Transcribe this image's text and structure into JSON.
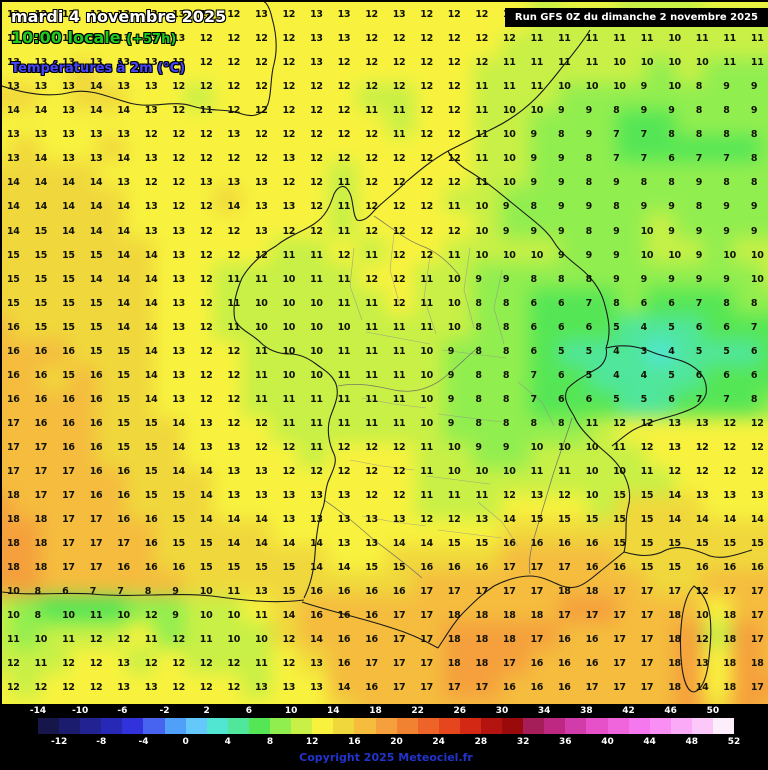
{
  "header": {
    "date": "mardi 4 novembre 2025",
    "time": "10:00 locale",
    "offset": "(+57h)",
    "parameter": "Températures à 2m (°C)",
    "run_info": "Run GFS 0Z du dimanche 2 novembre 2025"
  },
  "colors": {
    "date": "#ffffff",
    "time": "#1ecb1e",
    "parameter": "#4646ff",
    "copyright": "#2233cc",
    "number_text": "#121200"
  },
  "legend": {
    "copyright": "Copyright 2025 Meteociel.fr",
    "min": -14,
    "max": 52,
    "step": 2,
    "top_labels": [
      -14,
      -10,
      -6,
      -2,
      2,
      6,
      10,
      14,
      18,
      22,
      26,
      30,
      34,
      38,
      42,
      46,
      50
    ],
    "bottom_labels": [
      -12,
      -8,
      -4,
      0,
      4,
      8,
      12,
      16,
      20,
      24,
      28,
      32,
      36,
      40,
      44,
      48,
      52
    ],
    "colors": [
      "#16164a",
      "#1c1c6e",
      "#222292",
      "#2828b6",
      "#3232dc",
      "#4664f0",
      "#50a0fa",
      "#64c8fa",
      "#50e6d2",
      "#50e69b",
      "#55e655",
      "#91ee4f",
      "#c8f046",
      "#f8f23e",
      "#f0d83c",
      "#f5bc3e",
      "#f5a03c",
      "#f08232",
      "#ee6428",
      "#e6461e",
      "#d22814",
      "#b41410",
      "#9b0a0a",
      "#a51e5a",
      "#be2882",
      "#d23caa",
      "#e650c8",
      "#f064dc",
      "#f678ee",
      "#f98ff4",
      "#fbaaf8",
      "#fcc8fa",
      "#fdeefc"
    ]
  },
  "chart_data": {
    "type": "heatmap",
    "title": "Températures à 2m (°C)",
    "unit": "°C",
    "grid": [
      [
        13,
        12,
        13,
        13,
        13,
        13,
        13,
        12,
        12,
        13,
        12,
        13,
        13,
        12,
        13,
        12,
        12,
        12,
        12,
        11,
        12,
        12,
        11,
        11,
        11,
        12,
        12,
        12
      ],
      [
        13,
        13,
        13,
        13,
        13,
        13,
        13,
        12,
        12,
        12,
        12,
        13,
        13,
        12,
        12,
        12,
        12,
        12,
        12,
        11,
        11,
        11,
        11,
        11,
        10,
        11,
        11,
        11
      ],
      [
        13,
        13,
        13,
        13,
        13,
        13,
        12,
        12,
        12,
        12,
        12,
        13,
        12,
        12,
        12,
        12,
        12,
        12,
        11,
        11,
        11,
        11,
        10,
        10,
        10,
        10,
        11,
        11
      ],
      [
        13,
        13,
        13,
        14,
        13,
        13,
        12,
        12,
        12,
        12,
        12,
        12,
        12,
        12,
        12,
        12,
        12,
        11,
        11,
        11,
        10,
        10,
        10,
        9,
        10,
        8,
        9,
        9
      ],
      [
        14,
        14,
        13,
        14,
        14,
        13,
        12,
        11,
        12,
        12,
        12,
        12,
        12,
        11,
        11,
        12,
        12,
        11,
        10,
        10,
        9,
        9,
        8,
        9,
        9,
        8,
        8,
        9
      ],
      [
        13,
        13,
        13,
        13,
        13,
        12,
        12,
        12,
        13,
        12,
        12,
        12,
        12,
        12,
        11,
        12,
        12,
        11,
        10,
        9,
        8,
        9,
        7,
        7,
        8,
        8,
        8,
        8
      ],
      [
        13,
        14,
        13,
        13,
        14,
        13,
        12,
        12,
        12,
        12,
        13,
        12,
        12,
        12,
        12,
        12,
        12,
        11,
        10,
        9,
        9,
        8,
        7,
        7,
        6,
        7,
        7,
        8
      ],
      [
        14,
        14,
        14,
        14,
        13,
        12,
        12,
        13,
        13,
        13,
        12,
        12,
        11,
        12,
        12,
        12,
        12,
        11,
        10,
        9,
        9,
        8,
        9,
        8,
        8,
        9,
        8,
        8
      ],
      [
        14,
        14,
        14,
        14,
        14,
        13,
        12,
        12,
        14,
        13,
        13,
        12,
        11,
        12,
        12,
        12,
        11,
        10,
        9,
        8,
        9,
        9,
        8,
        9,
        9,
        8,
        9,
        9
      ],
      [
        14,
        15,
        14,
        14,
        14,
        13,
        13,
        12,
        12,
        13,
        12,
        12,
        11,
        12,
        12,
        12,
        12,
        10,
        9,
        9,
        9,
        8,
        9,
        10,
        9,
        9,
        9,
        9
      ],
      [
        15,
        15,
        15,
        15,
        14,
        14,
        13,
        12,
        12,
        12,
        11,
        11,
        12,
        11,
        12,
        12,
        11,
        10,
        10,
        10,
        9,
        9,
        9,
        10,
        10,
        9,
        10,
        10
      ],
      [
        15,
        15,
        15,
        14,
        14,
        14,
        13,
        12,
        11,
        11,
        10,
        11,
        11,
        12,
        12,
        11,
        10,
        9,
        9,
        8,
        8,
        8,
        9,
        9,
        9,
        9,
        9,
        10
      ],
      [
        15,
        15,
        15,
        15,
        14,
        14,
        13,
        12,
        11,
        10,
        10,
        10,
        11,
        11,
        12,
        11,
        10,
        8,
        8,
        6,
        6,
        7,
        8,
        6,
        6,
        7,
        8,
        8
      ],
      [
        16,
        15,
        15,
        15,
        14,
        14,
        13,
        12,
        11,
        10,
        10,
        10,
        10,
        11,
        11,
        11,
        10,
        8,
        8,
        6,
        6,
        6,
        5,
        4,
        5,
        6,
        6,
        7
      ],
      [
        16,
        16,
        16,
        15,
        15,
        14,
        13,
        12,
        12,
        11,
        10,
        10,
        11,
        11,
        11,
        10,
        9,
        8,
        8,
        6,
        5,
        5,
        4,
        3,
        4,
        5,
        5,
        6
      ],
      [
        16,
        16,
        15,
        16,
        15,
        14,
        13,
        12,
        12,
        11,
        10,
        10,
        11,
        11,
        11,
        10,
        9,
        8,
        8,
        7,
        6,
        5,
        4,
        4,
        5,
        6,
        6,
        6
      ],
      [
        16,
        16,
        16,
        16,
        15,
        14,
        13,
        12,
        12,
        11,
        11,
        11,
        11,
        11,
        11,
        10,
        9,
        8,
        8,
        7,
        6,
        6,
        5,
        5,
        6,
        7,
        7,
        8
      ],
      [
        17,
        16,
        16,
        16,
        15,
        15,
        14,
        13,
        12,
        12,
        11,
        11,
        11,
        11,
        11,
        10,
        9,
        8,
        8,
        8,
        8,
        11,
        12,
        12,
        13,
        13,
        12,
        12
      ],
      [
        17,
        17,
        16,
        16,
        15,
        15,
        14,
        13,
        13,
        12,
        12,
        11,
        12,
        12,
        12,
        11,
        10,
        9,
        9,
        10,
        10,
        10,
        11,
        12,
        13,
        12,
        12,
        12
      ],
      [
        17,
        17,
        17,
        16,
        16,
        15,
        14,
        14,
        13,
        13,
        12,
        12,
        12,
        12,
        12,
        11,
        10,
        10,
        10,
        11,
        11,
        10,
        10,
        11,
        12,
        12,
        12,
        12
      ],
      [
        18,
        17,
        17,
        16,
        16,
        15,
        15,
        14,
        13,
        13,
        13,
        13,
        13,
        12,
        12,
        11,
        11,
        11,
        12,
        13,
        12,
        10,
        15,
        15,
        14,
        13,
        13,
        13
      ],
      [
        18,
        18,
        17,
        17,
        16,
        16,
        15,
        14,
        14,
        14,
        13,
        13,
        13,
        13,
        13,
        12,
        12,
        13,
        14,
        15,
        15,
        15,
        15,
        15,
        14,
        14,
        14,
        14
      ],
      [
        18,
        18,
        17,
        17,
        17,
        16,
        15,
        15,
        14,
        14,
        14,
        14,
        13,
        13,
        14,
        14,
        15,
        15,
        16,
        16,
        16,
        16,
        15,
        15,
        15,
        15,
        15,
        15
      ],
      [
        18,
        18,
        17,
        17,
        16,
        16,
        16,
        15,
        15,
        15,
        15,
        14,
        14,
        15,
        15,
        16,
        16,
        16,
        17,
        17,
        17,
        16,
        16,
        15,
        15,
        16,
        16,
        16
      ],
      [
        10,
        8,
        6,
        7,
        7,
        8,
        9,
        10,
        11,
        13,
        15,
        16,
        16,
        16,
        16,
        17,
        17,
        17,
        17,
        17,
        18,
        18,
        17,
        17,
        17,
        12,
        17,
        17
      ],
      [
        10,
        8,
        10,
        11,
        10,
        12,
        9,
        10,
        10,
        11,
        14,
        16,
        16,
        16,
        17,
        17,
        18,
        18,
        18,
        18,
        17,
        17,
        17,
        17,
        18,
        10,
        18,
        17
      ],
      [
        11,
        10,
        11,
        12,
        12,
        11,
        12,
        11,
        10,
        10,
        12,
        14,
        16,
        16,
        17,
        17,
        18,
        18,
        18,
        17,
        16,
        16,
        17,
        17,
        18,
        12,
        18,
        17
      ],
      [
        12,
        11,
        12,
        12,
        13,
        12,
        12,
        12,
        12,
        11,
        12,
        13,
        16,
        17,
        17,
        17,
        18,
        18,
        17,
        16,
        16,
        16,
        17,
        17,
        18,
        13,
        18,
        18
      ],
      [
        12,
        12,
        12,
        12,
        13,
        13,
        12,
        12,
        12,
        13,
        13,
        13,
        14,
        16,
        17,
        17,
        17,
        17,
        16,
        16,
        16,
        17,
        17,
        17,
        18,
        14,
        18,
        17
      ]
    ]
  }
}
